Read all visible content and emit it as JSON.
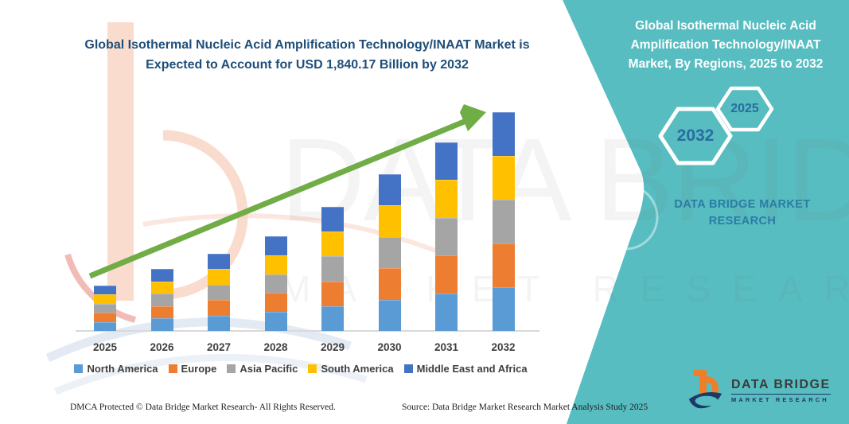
{
  "panel": {
    "title": "Global Isothermal Nucleic Acid Amplification Technology/INAAT Market, By Regions, 2025 to 2032",
    "hex_large": "2032",
    "hex_small": "2025",
    "brand": "DATA BRIDGE MARKET RESEARCH",
    "accent_color": "#57BDC1"
  },
  "watermark": {
    "line1": "DATA BRIDGE",
    "line2": "MARKET RESEARCH"
  },
  "footer": {
    "left": "DMCA Protected © Data Bridge Market Research-  All Rights Reserved.",
    "right": "Source: Data Bridge Market Research  Market Analysis Study 2025"
  },
  "logo": {
    "title": "DATA BRIDGE",
    "subtitle": "MARKET RESEARCH"
  },
  "chart_data": {
    "type": "bar",
    "stacked": true,
    "title": "Global Isothermal Nucleic Acid Amplification Technology/INAAT Market is Expected to Account for USD 1,840.17 Billion by 2032",
    "unit": "USD Billion",
    "categories": [
      "2025",
      "2026",
      "2027",
      "2028",
      "2029",
      "2030",
      "2031",
      "2032"
    ],
    "series": [
      {
        "name": "North America",
        "color": "#5B9BD5",
        "values": [
          76.3,
          104.4,
          129.8,
          159.3,
          208.8,
          263.6,
          317.2,
          368.0
        ]
      },
      {
        "name": "Europe",
        "color": "#ED7D31",
        "values": [
          76.3,
          104.4,
          129.8,
          159.3,
          208.8,
          263.6,
          317.2,
          368.0
        ]
      },
      {
        "name": "Asia Pacific",
        "color": "#A5A5A5",
        "values": [
          76.3,
          104.4,
          129.8,
          159.3,
          208.8,
          263.6,
          317.2,
          368.0
        ]
      },
      {
        "name": "South America",
        "color": "#FFC000",
        "values": [
          76.3,
          104.4,
          129.8,
          159.3,
          208.8,
          263.6,
          317.2,
          368.0
        ]
      },
      {
        "name": "Middle East and Africa",
        "color": "#4472C4",
        "values": [
          76.3,
          104.4,
          129.8,
          159.3,
          208.8,
          263.6,
          317.2,
          368.0
        ]
      }
    ],
    "totals_estimated": [
      381.4,
      521.9,
      649.1,
      796.3,
      1043.9,
      1318.2,
      1585.9,
      1840.17
    ],
    "ylim": [
      0,
      1840.17
    ],
    "xlabel": "",
    "ylabel": "",
    "grid": false,
    "legend_position": "bottom",
    "trend_arrow_color": "#70AD47"
  }
}
